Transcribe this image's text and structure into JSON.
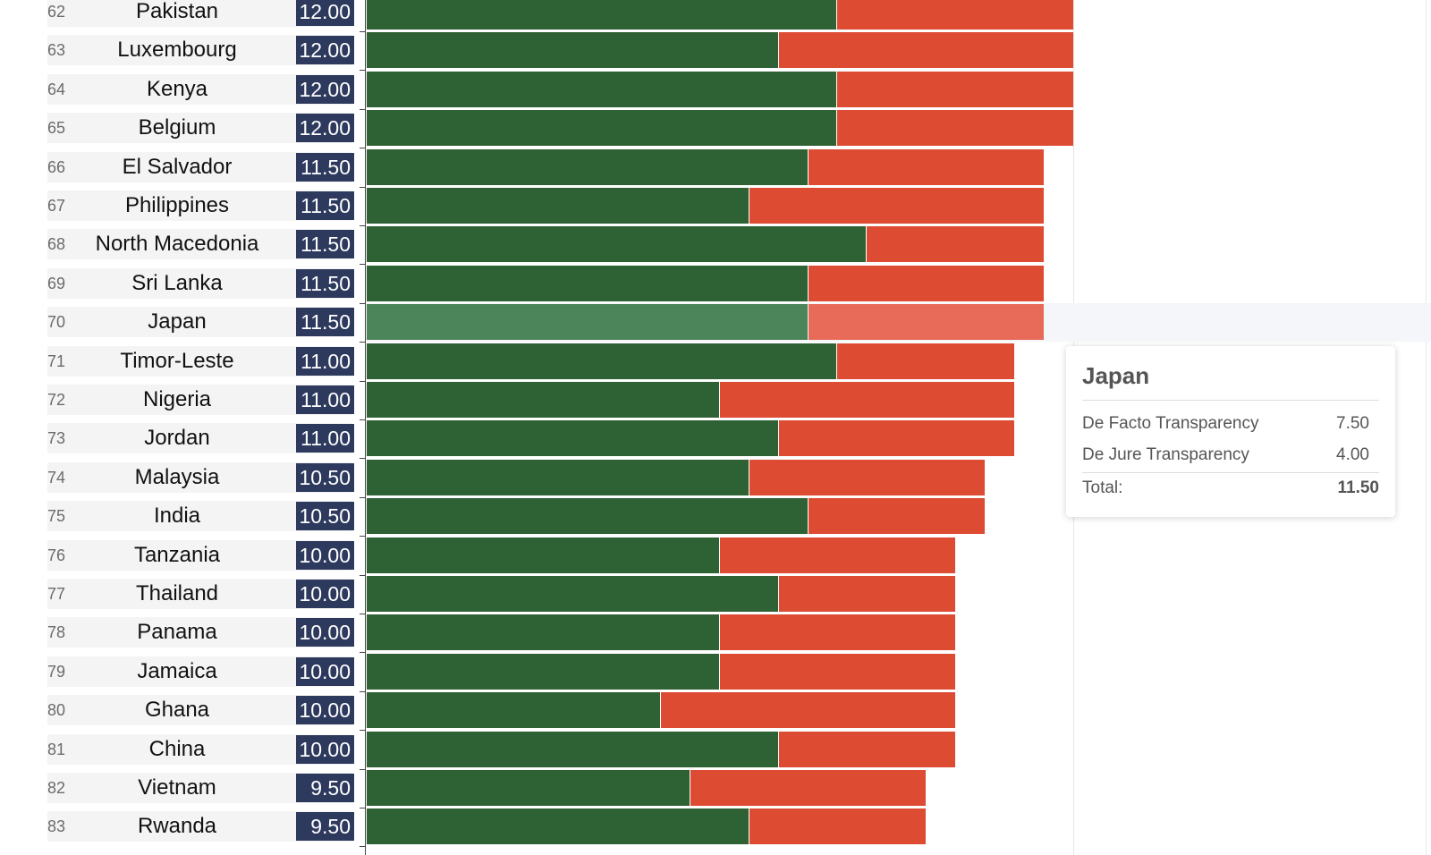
{
  "chart_data": {
    "type": "bar",
    "orientation": "horizontal",
    "stacked": true,
    "categories": [
      "Pakistan",
      "Luxembourg",
      "Kenya",
      "Belgium",
      "El Salvador",
      "Philippines",
      "North Macedonia",
      "Sri Lanka",
      "Japan",
      "Timor-Leste",
      "Nigeria",
      "Jordan",
      "Malaysia",
      "India",
      "Tanzania",
      "Thailand",
      "Panama",
      "Jamaica",
      "Ghana",
      "China",
      "Vietnam",
      "Rwanda"
    ],
    "ranks": [
      62,
      63,
      64,
      65,
      66,
      67,
      68,
      69,
      70,
      71,
      72,
      73,
      74,
      75,
      76,
      77,
      78,
      79,
      80,
      81,
      82,
      83
    ],
    "totals": [
      "12.00",
      "12.00",
      "12.00",
      "12.00",
      "11.50",
      "11.50",
      "11.50",
      "11.50",
      "11.50",
      "11.00",
      "11.00",
      "11.00",
      "10.50",
      "10.50",
      "10.00",
      "10.00",
      "10.00",
      "10.00",
      "10.00",
      "10.00",
      "9.50",
      "9.50"
    ],
    "series": [
      {
        "name": "De Facto Transparency",
        "color": "#2e6133",
        "values": [
          8.0,
          7.0,
          8.0,
          8.0,
          7.5,
          6.5,
          8.5,
          7.5,
          7.5,
          8.0,
          6.0,
          7.0,
          6.5,
          7.5,
          6.0,
          7.0,
          6.0,
          6.0,
          5.0,
          7.0,
          5.5,
          6.5
        ]
      },
      {
        "name": "De Jure Transparency",
        "color": "#dd4b32",
        "values": [
          4.0,
          5.0,
          4.0,
          4.0,
          4.0,
          5.0,
          3.0,
          4.0,
          4.0,
          3.0,
          5.0,
          4.0,
          4.0,
          3.0,
          4.0,
          3.0,
          4.0,
          4.0,
          5.0,
          3.0,
          4.0,
          3.0
        ]
      }
    ],
    "xlim": [
      0,
      18.5
    ],
    "grid": true,
    "highlighted_category": "Japan"
  },
  "tooltip": {
    "title": "Japan",
    "rows": [
      {
        "label": "De Facto Transparency",
        "value": "7.50"
      },
      {
        "label": "De Jure Transparency",
        "value": "4.00"
      }
    ],
    "total_label": "Total:",
    "total_value": "11.50"
  }
}
